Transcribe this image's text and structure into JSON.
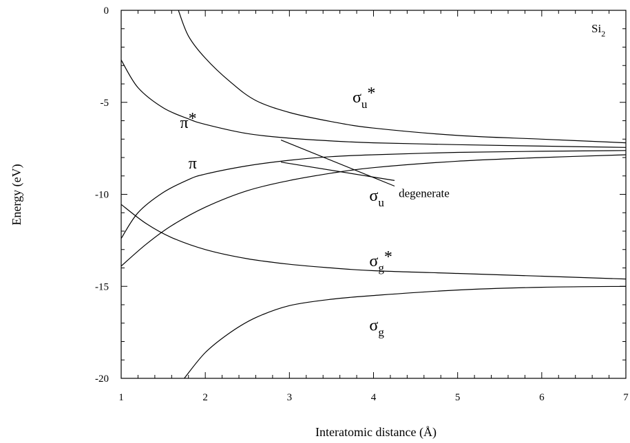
{
  "chart_data": {
    "type": "line",
    "title": "",
    "xlabel": "Interatomic distance (Å)",
    "ylabel": "Energy (eV)",
    "xlim": [
      1,
      7
    ],
    "ylim": [
      -20,
      0
    ],
    "x_ticks": [
      1,
      2,
      3,
      4,
      5,
      6,
      7
    ],
    "y_ticks": [
      0,
      -5,
      -10,
      -15,
      -20
    ],
    "x_tick_labels": [
      "1",
      "2",
      "3",
      "4",
      "5",
      "6",
      "7"
    ],
    "y_tick_labels": [
      "0",
      "-5",
      "-10",
      "-15",
      "-20"
    ],
    "grid": false,
    "molecule_label": {
      "base": "Si",
      "sub": "2"
    },
    "series": [
      {
        "x": [
          1.68,
          1.8,
          2.0,
          2.3,
          2.6,
          3.0,
          3.5,
          4.0,
          5.0,
          6.0,
          7.0
        ],
        "y": [
          0.0,
          -1.4,
          -2.6,
          -3.9,
          -4.9,
          -5.55,
          -6.05,
          -6.4,
          -6.8,
          -7.0,
          -7.2
        ]
      },
      {
        "x": [
          1.0,
          1.2,
          1.5,
          1.8,
          2.0,
          2.5,
          3.0,
          3.5,
          4.0,
          5.0,
          6.0,
          7.0
        ],
        "y": [
          -2.7,
          -4.2,
          -5.3,
          -5.9,
          -6.2,
          -6.7,
          -6.95,
          -7.1,
          -7.2,
          -7.3,
          -7.38,
          -7.45
        ]
      },
      {
        "x": [
          1.0,
          1.2,
          1.5,
          1.8,
          2.0,
          2.5,
          3.0,
          3.5,
          4.0,
          5.0,
          6.0,
          7.0
        ],
        "y": [
          -12.4,
          -11.0,
          -9.9,
          -9.2,
          -8.9,
          -8.45,
          -8.15,
          -7.95,
          -7.85,
          -7.72,
          -7.66,
          -7.62
        ]
      },
      {
        "x": [
          1.0,
          1.3,
          1.6,
          2.0,
          2.5,
          3.0,
          3.5,
          4.0,
          5.0,
          6.0,
          7.0
        ],
        "y": [
          -13.9,
          -12.7,
          -11.7,
          -10.7,
          -9.8,
          -9.25,
          -8.85,
          -8.55,
          -8.2,
          -8.0,
          -7.85
        ]
      },
      {
        "x": [
          1.0,
          1.3,
          1.6,
          2.0,
          2.5,
          3.0,
          3.5,
          4.0,
          5.0,
          6.0,
          7.0
        ],
        "y": [
          -10.55,
          -11.6,
          -12.35,
          -13.0,
          -13.5,
          -13.8,
          -14.0,
          -14.15,
          -14.3,
          -14.45,
          -14.6
        ]
      },
      {
        "x": [
          1.75,
          2.0,
          2.3,
          2.6,
          3.0,
          3.5,
          4.0,
          5.0,
          6.0,
          7.0
        ],
        "y": [
          -20.0,
          -18.6,
          -17.5,
          -16.7,
          -16.05,
          -15.7,
          -15.5,
          -15.2,
          -15.05,
          -15.0
        ]
      },
      {
        "x": [
          2.9,
          4.25
        ],
        "y": [
          -7.05,
          -9.55
        ]
      },
      {
        "x": [
          2.9,
          4.25
        ],
        "y": [
          -8.25,
          -9.25
        ]
      }
    ],
    "annotations": [
      {
        "main": "σ",
        "sub": "u",
        "sup": "*",
        "x": 3.75,
        "y": -5.0
      },
      {
        "main": "π",
        "sub": "",
        "sup": "*",
        "x": 1.7,
        "y": -6.4
      },
      {
        "main": "π",
        "sub": "",
        "sup": "",
        "x": 1.8,
        "y": -8.6
      },
      {
        "main": "σ",
        "sub": "u",
        "sup": "",
        "x": 3.95,
        "y": -10.35
      },
      {
        "main": "σ",
        "sub": "g",
        "sup": "*",
        "x": 3.95,
        "y": -13.9
      },
      {
        "main": "σ",
        "sub": "g",
        "sup": "",
        "x": 3.95,
        "y": -17.4
      }
    ],
    "text_annotations": [
      {
        "text": "degenerate",
        "x": 4.3,
        "y": -10.15
      }
    ]
  }
}
